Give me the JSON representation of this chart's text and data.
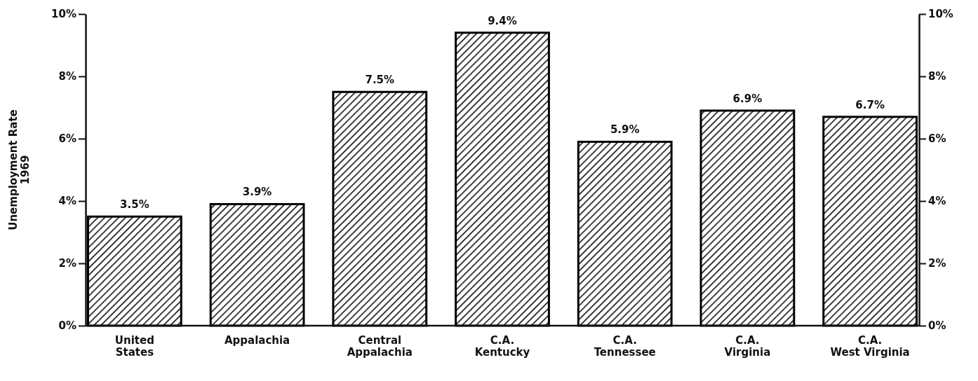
{
  "chart_data": {
    "type": "bar",
    "ylabel": "Unemployment Rate\n1969",
    "categories": [
      "United\nStates",
      "Appalachia",
      "Central\nAppalachia",
      "C.A.\nKentucky",
      "C.A.\nTennessee",
      "C.A.\nVirginia",
      "C.A.\nWest Virginia"
    ],
    "series": [
      {
        "color": "#000000",
        "values": [
          3.5,
          3.9,
          7.5,
          9.4,
          5.9,
          6.9,
          6.7
        ],
        "value_labels": [
          "3.5%",
          "3.9%",
          "7.5%",
          "9.4%",
          "5.9%",
          "6.9%",
          "6.7%"
        ]
      }
    ],
    "ylim": [
      0,
      10
    ],
    "yticks": [
      {
        "value": 0,
        "label": "0%"
      },
      {
        "value": 2,
        "label": "2%"
      },
      {
        "value": 4,
        "label": "4%"
      },
      {
        "value": 6,
        "label": "6%"
      },
      {
        "value": 8,
        "label": "8%"
      },
      {
        "value": 10,
        "label": "10%"
      }
    ],
    "y2lim": [
      0,
      10
    ],
    "y2ticks": [
      {
        "value": 0,
        "label": "0%"
      },
      {
        "value": 2,
        "label": "2%"
      },
      {
        "value": 4,
        "label": "4%"
      },
      {
        "value": 6,
        "label": "6%"
      },
      {
        "value": 8,
        "label": "8%"
      },
      {
        "value": 10,
        "label": "10%"
      }
    ],
    "grid": false
  }
}
